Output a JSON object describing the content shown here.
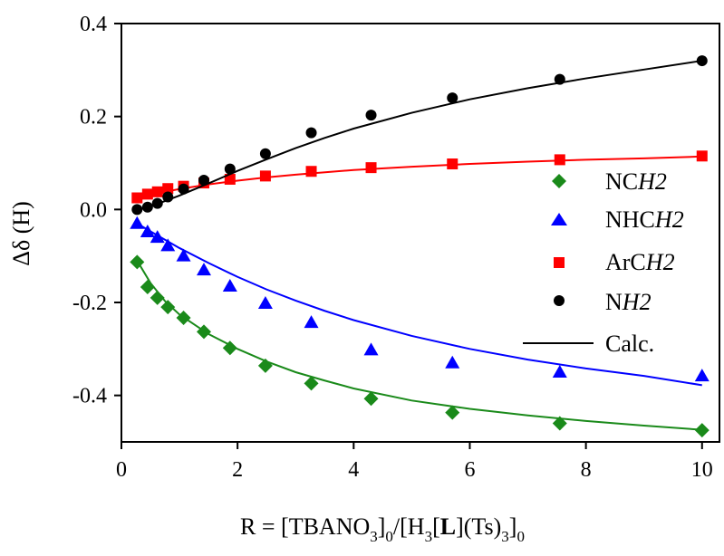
{
  "chart_data": {
    "type": "scatter",
    "xlabel": "R = [TBANO3]0/[H3[L](Ts)3]0",
    "ylabel": "Δδ (H)",
    "xlim": [
      0,
      10.3
    ],
    "ylim": [
      -0.5,
      0.4
    ],
    "x_ticks": [
      0,
      2,
      4,
      6,
      8,
      10
    ],
    "y_ticks": [
      -0.4,
      -0.2,
      0.0,
      0.2,
      0.4
    ],
    "x_tick_labels": [
      "0",
      "2",
      "4",
      "6",
      "8",
      "10"
    ],
    "y_tick_labels": [
      "-0.4",
      "-0.2",
      "0.0",
      "0.2",
      "0.4"
    ],
    "legend_position": "right",
    "series": [
      {
        "name": "NCH2",
        "marker": "diamond",
        "color": "#1a8a1a",
        "x": [
          0.27,
          0.45,
          0.62,
          0.8,
          1.07,
          1.42,
          1.87,
          2.48,
          3.27,
          4.3,
          5.7,
          7.55,
          10.0
        ],
        "y": [
          -0.113,
          -0.167,
          -0.19,
          -0.21,
          -0.233,
          -0.263,
          -0.298,
          -0.336,
          -0.374,
          -0.407,
          -0.437,
          -0.46,
          -0.475
        ],
        "fit": [
          [
            0.27,
            -0.11
          ],
          [
            0.5,
            -0.158
          ],
          [
            0.75,
            -0.197
          ],
          [
            1.0,
            -0.226
          ],
          [
            1.5,
            -0.268
          ],
          [
            2.0,
            -0.3
          ],
          [
            2.5,
            -0.327
          ],
          [
            3.0,
            -0.35
          ],
          [
            3.5,
            -0.368
          ],
          [
            4.0,
            -0.385
          ],
          [
            5.0,
            -0.411
          ],
          [
            6.0,
            -0.429
          ],
          [
            7.0,
            -0.443
          ],
          [
            8.0,
            -0.455
          ],
          [
            9.0,
            -0.465
          ],
          [
            10.0,
            -0.474
          ]
        ]
      },
      {
        "name": "NHCH2",
        "marker": "triangle",
        "color": "#0000ff",
        "x": [
          0.27,
          0.45,
          0.62,
          0.8,
          1.07,
          1.42,
          1.87,
          2.48,
          3.27,
          4.3,
          5.7,
          7.55,
          10.0
        ],
        "y": [
          -0.03,
          -0.048,
          -0.06,
          -0.078,
          -0.1,
          -0.13,
          -0.165,
          -0.202,
          -0.243,
          -0.302,
          -0.33,
          -0.35,
          -0.358
        ],
        "fit": [
          [
            0.27,
            -0.03
          ],
          [
            0.5,
            -0.047
          ],
          [
            0.75,
            -0.065
          ],
          [
            1.0,
            -0.083
          ],
          [
            1.5,
            -0.115
          ],
          [
            2.0,
            -0.145
          ],
          [
            2.5,
            -0.172
          ],
          [
            3.0,
            -0.196
          ],
          [
            3.5,
            -0.218
          ],
          [
            4.0,
            -0.238
          ],
          [
            5.0,
            -0.272
          ],
          [
            6.0,
            -0.3
          ],
          [
            7.0,
            -0.323
          ],
          [
            8.0,
            -0.342
          ],
          [
            9.0,
            -0.358
          ],
          [
            10.0,
            -0.378
          ]
        ]
      },
      {
        "name": "ArCH2",
        "marker": "square",
        "color": "#ff0000",
        "x": [
          0.27,
          0.45,
          0.62,
          0.8,
          1.07,
          1.42,
          1.87,
          2.48,
          3.27,
          4.3,
          5.7,
          7.55,
          10.0
        ],
        "y": [
          0.025,
          0.033,
          0.038,
          0.045,
          0.05,
          0.057,
          0.065,
          0.072,
          0.082,
          0.09,
          0.098,
          0.107,
          0.115
        ],
        "fit": [
          [
            0.27,
            0.026
          ],
          [
            0.5,
            0.032
          ],
          [
            0.75,
            0.038
          ],
          [
            1.0,
            0.044
          ],
          [
            1.5,
            0.054
          ],
          [
            2.0,
            0.062
          ],
          [
            2.5,
            0.069
          ],
          [
            3.0,
            0.075
          ],
          [
            4.0,
            0.085
          ],
          [
            5.0,
            0.092
          ],
          [
            6.0,
            0.098
          ],
          [
            7.0,
            0.103
          ],
          [
            8.0,
            0.107
          ],
          [
            9.0,
            0.11
          ],
          [
            10.0,
            0.114
          ]
        ]
      },
      {
        "name": "NH2",
        "marker": "circle",
        "color": "#000000",
        "x": [
          0.27,
          0.45,
          0.62,
          0.8,
          1.07,
          1.42,
          1.87,
          2.48,
          3.27,
          4.3,
          5.7,
          7.55,
          10.0
        ],
        "y": [
          0.0,
          0.005,
          0.013,
          0.027,
          0.044,
          0.063,
          0.087,
          0.12,
          0.165,
          0.203,
          0.24,
          0.28,
          0.32
        ],
        "fit": [
          [
            0.27,
            -0.001
          ],
          [
            0.5,
            0.007
          ],
          [
            0.75,
            0.018
          ],
          [
            1.0,
            0.03
          ],
          [
            1.5,
            0.056
          ],
          [
            2.0,
            0.083
          ],
          [
            2.5,
            0.108
          ],
          [
            3.0,
            0.132
          ],
          [
            3.5,
            0.154
          ],
          [
            4.0,
            0.174
          ],
          [
            5.0,
            0.208
          ],
          [
            6.0,
            0.237
          ],
          [
            7.0,
            0.261
          ],
          [
            8.0,
            0.282
          ],
          [
            9.0,
            0.301
          ],
          [
            10.0,
            0.32
          ]
        ]
      }
    ],
    "legend": {
      "entries": [
        "NCH2",
        "NHCH2",
        "ArCH2",
        "NH2",
        "Calc."
      ]
    }
  }
}
